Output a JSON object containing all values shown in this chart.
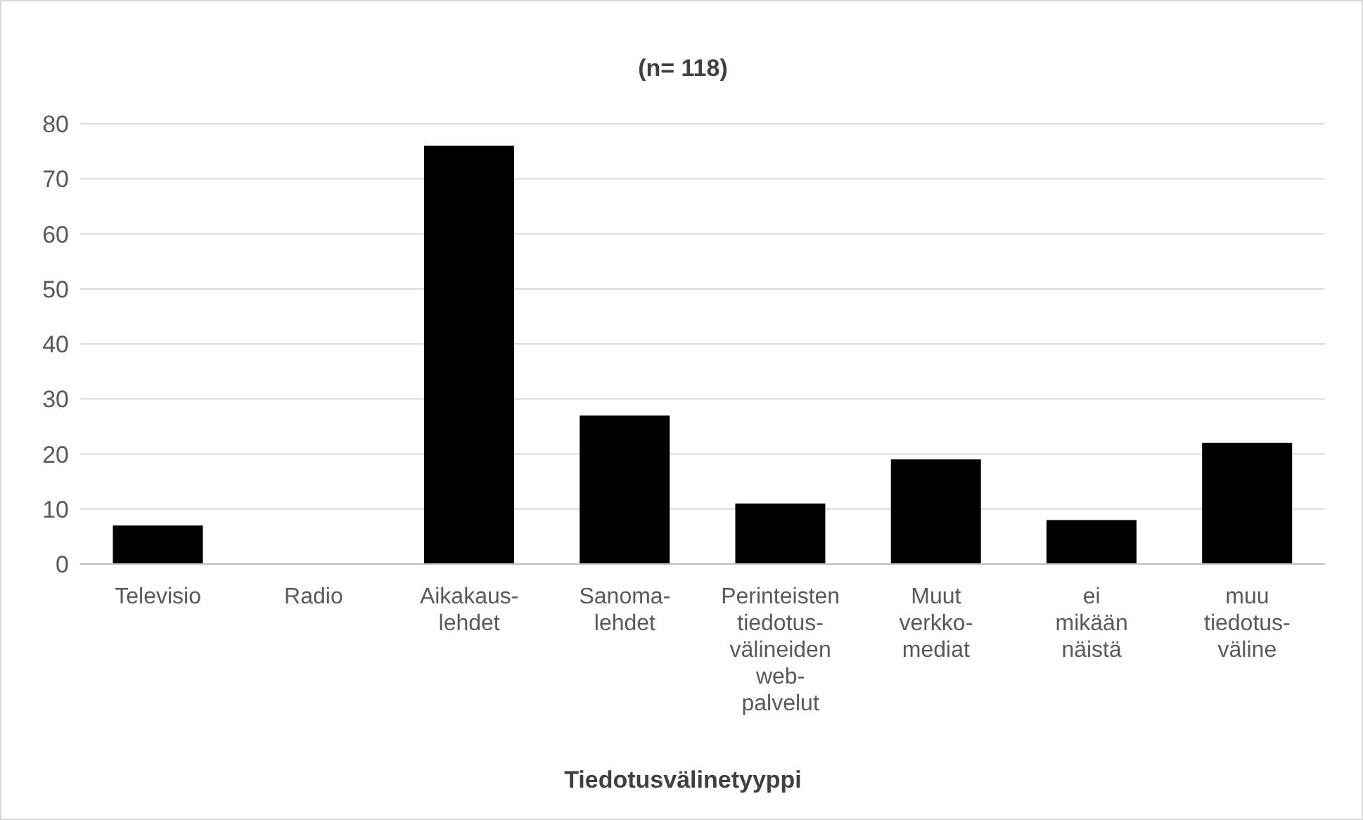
{
  "chart_data": {
    "type": "bar",
    "title": "(n= 118)",
    "xlabel": "Tiedotusvälinetyyppi",
    "categories": [
      "Televisio",
      "Radio",
      "Aikakaus-lehdet",
      "Sanoma-lehdet",
      "Perinteisten tiedotus-välineiden web-palvelut",
      "Muut verkko-mediat",
      "ei mikään näistä",
      "muu tiedotus-väline"
    ],
    "values": [
      7,
      0,
      76,
      27,
      11,
      19,
      8,
      22
    ],
    "color": "#000000",
    "ylim": [
      0,
      80
    ],
    "yticks": [
      0,
      10,
      20,
      30,
      40,
      50,
      60,
      70,
      80
    ],
    "grid": "y",
    "legend": false
  }
}
